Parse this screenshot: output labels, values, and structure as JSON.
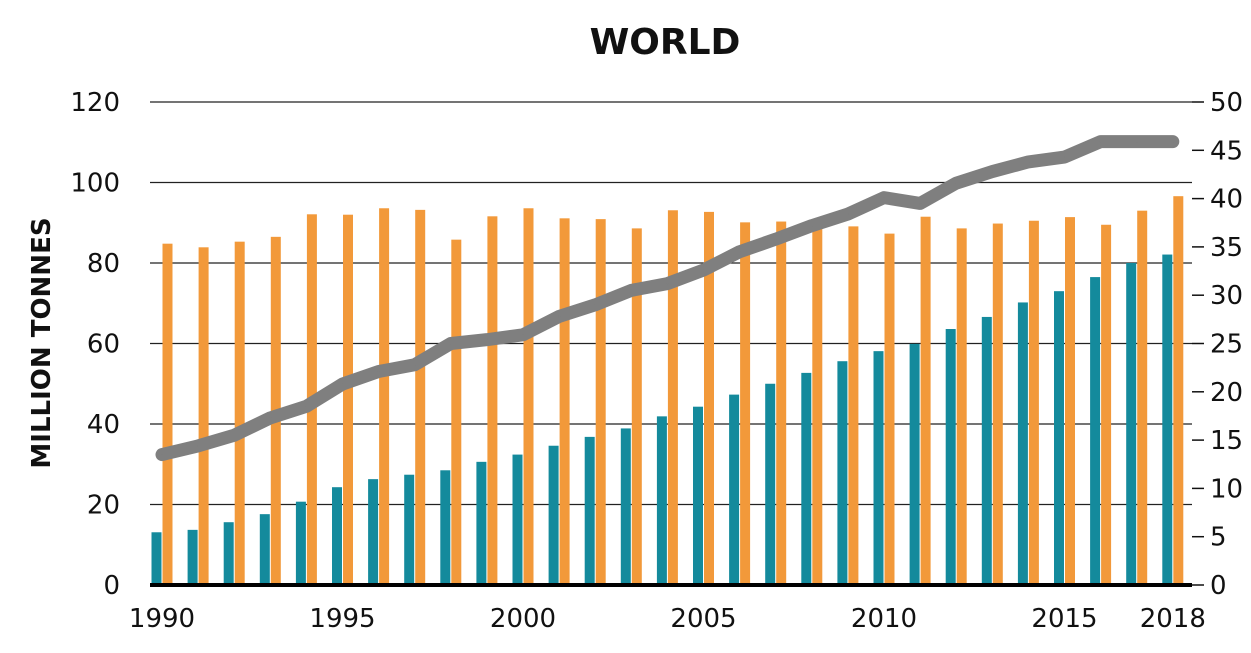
{
  "chart_data": {
    "type": "bar",
    "title": "WORLD",
    "ylabel": "MILLION TONNES",
    "ylim": [
      0,
      120
    ],
    "y_ticks": [
      "0",
      "20",
      "40",
      "60",
      "80",
      "100",
      "120"
    ],
    "y2lim": [
      0,
      50
    ],
    "y2_ticks": [
      "0",
      "5",
      "10",
      "15",
      "20",
      "25",
      "30",
      "35",
      "40",
      "45",
      "50"
    ],
    "x": [
      1990,
      1991,
      1992,
      1993,
      1994,
      1995,
      1996,
      1997,
      1998,
      1999,
      2000,
      2001,
      2002,
      2003,
      2004,
      2005,
      2006,
      2007,
      2008,
      2009,
      2010,
      2011,
      2012,
      2013,
      2014,
      2015,
      2016,
      2017,
      2018
    ],
    "x_tick_labels": [
      "1990",
      "1995",
      "2000",
      "2005",
      "2010",
      "2015",
      "2018"
    ],
    "grid": true,
    "series": [
      {
        "type": "bar",
        "axis": "left",
        "color": "#148a9c",
        "values": [
          13.1,
          13.7,
          15.6,
          17.6,
          20.7,
          24.3,
          26.3,
          27.4,
          28.5,
          30.6,
          32.4,
          34.6,
          36.8,
          38.9,
          41.9,
          44.3,
          47.3,
          50.0,
          52.7,
          55.6,
          58.1,
          59.9,
          63.6,
          66.6,
          70.2,
          73.0,
          76.5,
          80.0,
          82.1
        ]
      },
      {
        "type": "bar",
        "axis": "left",
        "color": "#f2993a",
        "values": [
          84.8,
          83.9,
          85.3,
          86.5,
          92.1,
          92.0,
          93.6,
          93.2,
          85.8,
          91.6,
          93.6,
          91.1,
          90.9,
          88.6,
          93.1,
          92.7,
          90.1,
          90.3,
          89.6,
          89.1,
          87.3,
          91.5,
          88.6,
          89.8,
          90.5,
          91.4,
          89.5,
          93.0,
          96.6
        ]
      },
      {
        "type": "line",
        "axis": "right",
        "color": "#7f7f7f",
        "values": [
          13.5,
          14.4,
          15.5,
          17.3,
          18.5,
          20.8,
          22.1,
          22.8,
          25.0,
          25.4,
          25.9,
          27.8,
          29.0,
          30.5,
          31.2,
          32.6,
          34.5,
          35.8,
          37.2,
          38.4,
          40.1,
          39.5,
          41.6,
          42.8,
          43.8,
          44.3,
          45.9,
          45.9,
          45.9
        ]
      }
    ]
  }
}
